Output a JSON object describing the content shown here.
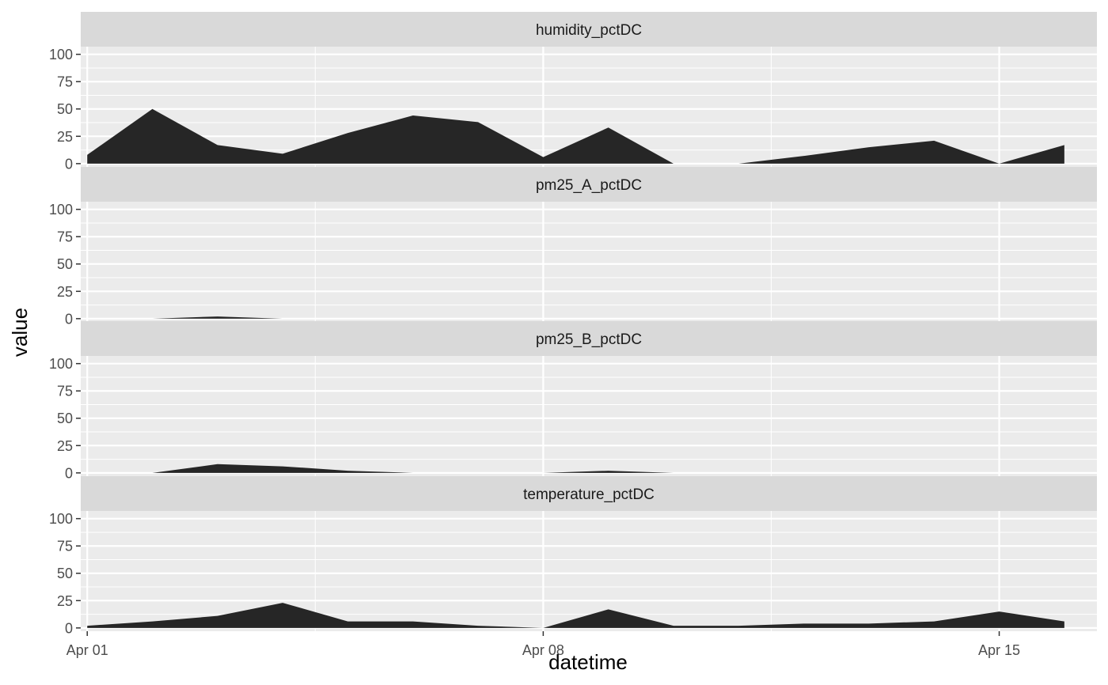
{
  "chart_data": {
    "type": "area",
    "xlabel": "datetime",
    "ylabel": "value",
    "x": [
      "Apr 01",
      "Apr 02",
      "Apr 03",
      "Apr 04",
      "Apr 05",
      "Apr 06",
      "Apr 07",
      "Apr 08",
      "Apr 09",
      "Apr 10",
      "Apr 11",
      "Apr 12",
      "Apr 13",
      "Apr 14",
      "Apr 15",
      "Apr 16"
    ],
    "xrange_days": [
      -0.1,
      15.5
    ],
    "xticks": [
      {
        "day": 0,
        "label": "Apr 01"
      },
      {
        "day": 7,
        "label": "Apr 08"
      },
      {
        "day": 14,
        "label": "Apr 15"
      }
    ],
    "ylim": [
      -3,
      107
    ],
    "yticks": [
      0,
      25,
      50,
      75,
      100
    ],
    "grid": true,
    "fill_color": "#262626",
    "panel_background": "#ebebeb",
    "strip_background": "#d9d9d9",
    "facets": [
      {
        "name": "humidity_pctDC",
        "values": [
          8,
          50,
          17,
          9,
          28,
          44,
          38,
          6,
          33,
          0,
          0,
          7,
          15,
          21,
          0,
          17
        ]
      },
      {
        "name": "pm25_A_pctDC",
        "values": [
          0,
          0,
          2,
          0,
          0,
          0,
          0,
          0,
          0,
          0,
          0,
          0,
          0,
          0,
          0,
          0
        ]
      },
      {
        "name": "pm25_B_pctDC",
        "values": [
          0,
          0,
          8,
          6,
          2,
          0,
          0,
          0,
          2,
          0,
          0,
          0,
          0,
          0,
          0,
          0
        ]
      },
      {
        "name": "temperature_pctDC",
        "values": [
          2,
          6,
          11,
          23,
          6,
          6,
          2,
          0,
          17,
          2,
          2,
          4,
          4,
          6,
          15,
          6
        ]
      }
    ]
  }
}
